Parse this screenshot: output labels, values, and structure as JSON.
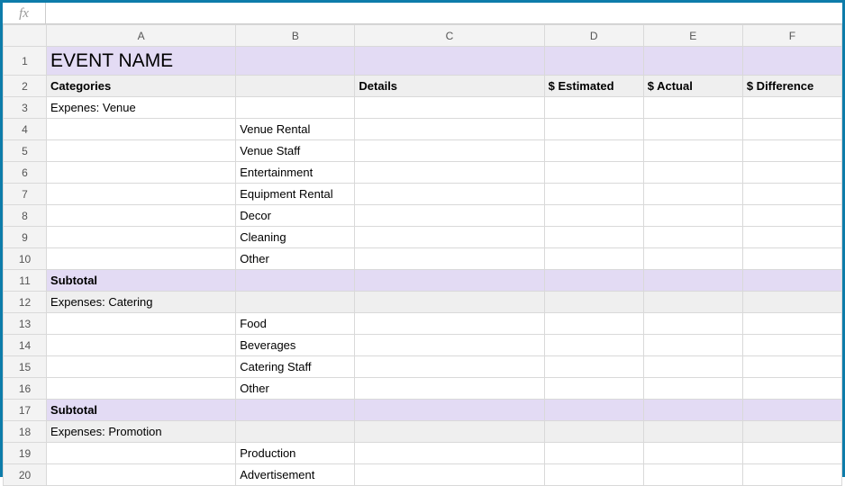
{
  "formula_bar": {
    "fx_label": "fx",
    "value": ""
  },
  "columns": [
    "A",
    "B",
    "C",
    "D",
    "E",
    "F"
  ],
  "row_numbers": [
    1,
    2,
    3,
    4,
    5,
    6,
    7,
    8,
    9,
    10,
    11,
    12,
    13,
    14,
    15,
    16,
    17,
    18,
    19,
    20
  ],
  "colors": {
    "border_outer": "#0d7caa",
    "header_bg": "#f3f3f3",
    "grid": "#d9d9d9",
    "purple_bg": "#e3dbf4",
    "gray_bg": "#efefef"
  },
  "col_widths": {
    "rowhdr": 48,
    "A": 210,
    "B": 132,
    "C": 210,
    "D": 110,
    "E": 110,
    "F": 110
  },
  "rows": [
    {
      "n": 1,
      "class": "title-row",
      "cells": [
        "EVENT NAME",
        "",
        "",
        "",
        "",
        ""
      ]
    },
    {
      "n": 2,
      "class": "header-row",
      "cells": [
        "Categories",
        "",
        "Details",
        "$ Estimated",
        "$ Actual",
        "$ Difference"
      ]
    },
    {
      "n": 3,
      "class": "",
      "cells": [
        "Expenes: Venue",
        "",
        "",
        "",
        "",
        ""
      ]
    },
    {
      "n": 4,
      "class": "",
      "cells": [
        "",
        "Venue Rental",
        "",
        "",
        "",
        ""
      ]
    },
    {
      "n": 5,
      "class": "",
      "cells": [
        "",
        "Venue Staff",
        "",
        "",
        "",
        ""
      ]
    },
    {
      "n": 6,
      "class": "",
      "cells": [
        "",
        "Entertainment",
        "",
        "",
        "",
        ""
      ]
    },
    {
      "n": 7,
      "class": "",
      "cells": [
        "",
        "Equipment Rental",
        "",
        "",
        "",
        ""
      ]
    },
    {
      "n": 8,
      "class": "",
      "cells": [
        "",
        "Decor",
        "",
        "",
        "",
        ""
      ]
    },
    {
      "n": 9,
      "class": "",
      "cells": [
        "",
        "Cleaning",
        "",
        "",
        "",
        ""
      ]
    },
    {
      "n": 10,
      "class": "",
      "cells": [
        "",
        "Other",
        "",
        "",
        "",
        ""
      ]
    },
    {
      "n": 11,
      "class": "subtotal-row",
      "cells": [
        "Subtotal",
        "",
        "",
        "",
        "",
        ""
      ]
    },
    {
      "n": 12,
      "class": "gray-row",
      "cells": [
        "Expenses: Catering",
        "",
        "",
        "",
        "",
        ""
      ]
    },
    {
      "n": 13,
      "class": "",
      "cells": [
        "",
        "Food",
        "",
        "",
        "",
        ""
      ]
    },
    {
      "n": 14,
      "class": "",
      "cells": [
        "",
        "Beverages",
        "",
        "",
        "",
        ""
      ]
    },
    {
      "n": 15,
      "class": "",
      "cells": [
        "",
        "Catering Staff",
        "",
        "",
        "",
        ""
      ]
    },
    {
      "n": 16,
      "class": "",
      "cells": [
        "",
        "Other",
        "",
        "",
        "",
        ""
      ]
    },
    {
      "n": 17,
      "class": "subtotal-row",
      "cells": [
        "Subtotal",
        "",
        "",
        "",
        "",
        ""
      ]
    },
    {
      "n": 18,
      "class": "gray-row",
      "cells": [
        "Expenses: Promotion",
        "",
        "",
        "",
        "",
        ""
      ]
    },
    {
      "n": 19,
      "class": "",
      "cells": [
        "",
        "Production",
        "",
        "",
        "",
        ""
      ]
    },
    {
      "n": 20,
      "class": "",
      "cells": [
        "",
        "Advertisement",
        "",
        "",
        "",
        ""
      ]
    }
  ]
}
